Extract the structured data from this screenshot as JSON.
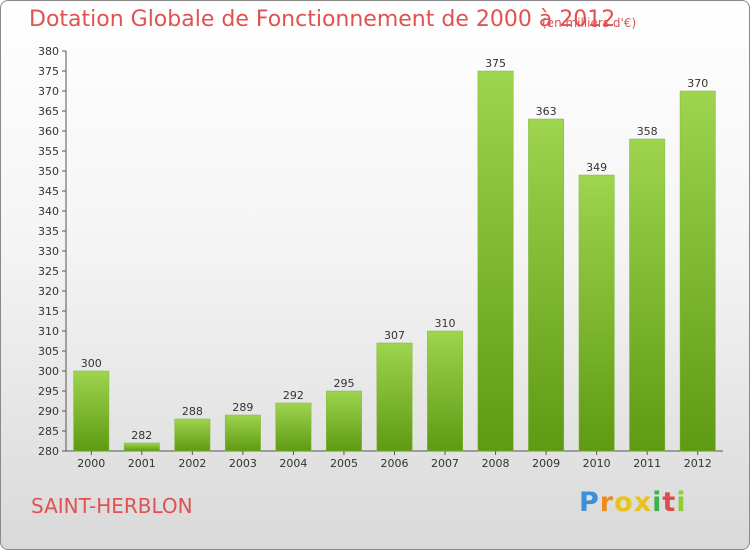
{
  "chart_data": {
    "type": "bar",
    "title": "Dotation Globale de Fonctionnement de 2000 à 2012",
    "subtitle": "(en milliers d'€)",
    "xlabel": "",
    "ylabel": "",
    "categories": [
      "2000",
      "2001",
      "2002",
      "2003",
      "2004",
      "2005",
      "2006",
      "2007",
      "2008",
      "2009",
      "2010",
      "2011",
      "2012"
    ],
    "values": [
      300,
      282,
      288,
      289,
      292,
      295,
      307,
      310,
      375,
      363,
      349,
      358,
      370
    ],
    "data_labels": [
      "300",
      "282",
      "288",
      "289",
      "292",
      "295",
      "307",
      "310",
      "375",
      "363",
      "349",
      "358",
      "370"
    ],
    "ylim": [
      280,
      380
    ],
    "y_ticks": [
      280,
      285,
      290,
      295,
      300,
      305,
      310,
      315,
      320,
      325,
      330,
      335,
      340,
      345,
      350,
      355,
      360,
      365,
      370,
      375,
      380
    ],
    "grid": false,
    "legend": "none",
    "bar_color_top": "#9ed44e",
    "bar_color_bottom": "#5f9a13"
  },
  "commune": "SAINT-HERBLON",
  "logo": {
    "letters": [
      "P",
      "r",
      "o",
      "x",
      "i",
      "t",
      "i"
    ],
    "colors": [
      "#3d8fd6",
      "#f08a1c",
      "#e8c41a",
      "#e8c41a",
      "#3bb24a",
      "#e04a4a",
      "#8fcd3a"
    ]
  }
}
